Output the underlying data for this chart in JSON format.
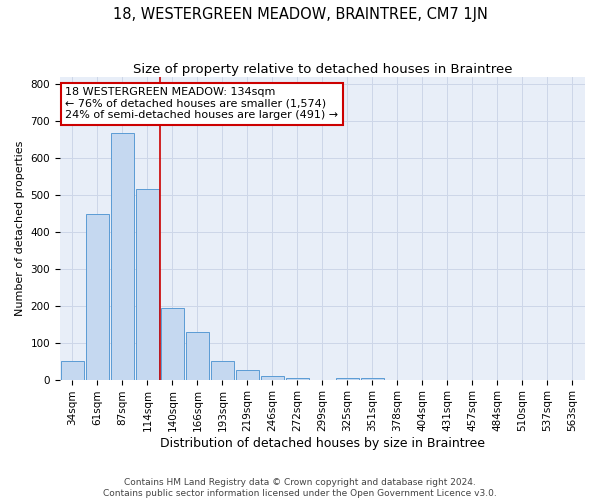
{
  "title": "18, WESTERGREEN MEADOW, BRAINTREE, CM7 1JN",
  "subtitle": "Size of property relative to detached houses in Braintree",
  "xlabel": "Distribution of detached houses by size in Braintree",
  "ylabel": "Number of detached properties",
  "footer_line1": "Contains HM Land Registry data © Crown copyright and database right 2024.",
  "footer_line2": "Contains public sector information licensed under the Open Government Licence v3.0.",
  "bins": [
    "34sqm",
    "61sqm",
    "87sqm",
    "114sqm",
    "140sqm",
    "166sqm",
    "193sqm",
    "219sqm",
    "246sqm",
    "272sqm",
    "299sqm",
    "325sqm",
    "351sqm",
    "378sqm",
    "404sqm",
    "431sqm",
    "457sqm",
    "484sqm",
    "510sqm",
    "537sqm",
    "563sqm"
  ],
  "values": [
    50,
    448,
    668,
    515,
    195,
    128,
    50,
    25,
    10,
    5,
    0,
    5,
    5,
    0,
    0,
    0,
    0,
    0,
    0,
    0,
    0
  ],
  "bar_color": "#c5d8f0",
  "bar_edge_color": "#5b9bd5",
  "vline_x": 4.0,
  "vline_color": "#cc0000",
  "annotation_line1": "18 WESTERGREEN MEADOW: 134sqm",
  "annotation_line2": "← 76% of detached houses are smaller (1,574)",
  "annotation_line3": "24% of semi-detached houses are larger (491) →",
  "annotation_box_color": "#cc0000",
  "ylim": [
    0,
    820
  ],
  "yticks": [
    0,
    100,
    200,
    300,
    400,
    500,
    600,
    700,
    800
  ],
  "grid_color": "#cdd6e8",
  "background_color": "#e8eef8",
  "title_fontsize": 10.5,
  "subtitle_fontsize": 9.5,
  "xlabel_fontsize": 9,
  "ylabel_fontsize": 8,
  "tick_fontsize": 7.5,
  "annotation_fontsize": 8,
  "footer_fontsize": 6.5
}
